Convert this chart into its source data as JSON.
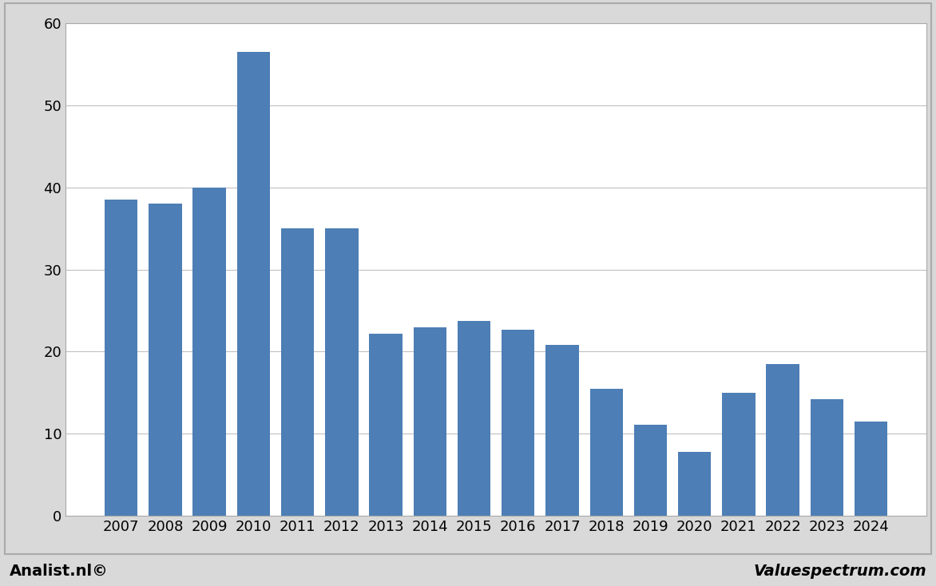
{
  "categories": [
    "2007",
    "2008",
    "2009",
    "2010",
    "2011",
    "2012",
    "2013",
    "2014",
    "2015",
    "2016",
    "2017",
    "2018",
    "2019",
    "2020",
    "2021",
    "2022",
    "2023",
    "2024"
  ],
  "values": [
    38.5,
    38.0,
    40.0,
    56.5,
    35.0,
    35.0,
    22.2,
    23.0,
    23.7,
    22.7,
    20.8,
    15.5,
    11.1,
    7.8,
    15.0,
    18.5,
    14.2,
    11.5
  ],
  "bar_color": "#4d7eb5",
  "outer_background_color": "#d9d9d9",
  "inner_background_color": "#d9d9d9",
  "plot_background": "#ffffff",
  "ylim": [
    0,
    60
  ],
  "yticks": [
    0,
    10,
    20,
    30,
    40,
    50,
    60
  ],
  "grid_color": "#c0c0c0",
  "bottom_left_text": "Analist.nl©",
  "bottom_right_text": "Valuespectrum.com",
  "footer_fontsize": 14,
  "tick_fontsize": 13,
  "bar_width": 0.75
}
